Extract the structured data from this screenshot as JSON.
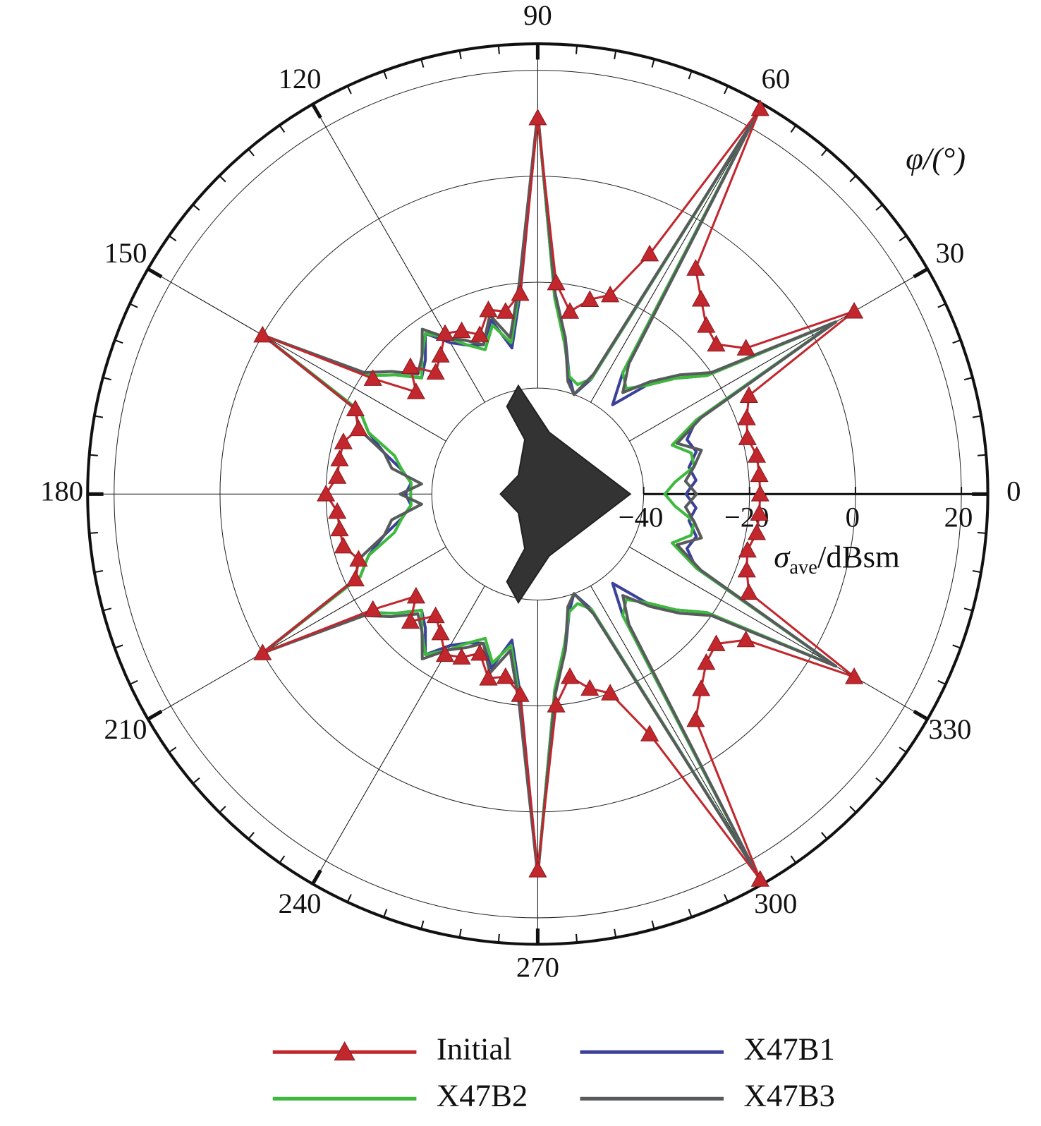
{
  "chart_data": {
    "type": "polar-line",
    "theta_label": "φ/(°)",
    "r_label": {
      "symbol": "σ",
      "subscript": "ave",
      "unit": "/dBsm"
    },
    "rlim": [
      -60,
      25
    ],
    "rticks": [
      {
        "value": -40,
        "label": "−40"
      },
      {
        "value": -20,
        "label": "−20"
      },
      0,
      20
    ],
    "thetaticks": [
      0,
      30,
      60,
      90,
      120,
      150,
      180,
      210,
      240,
      270,
      300,
      330
    ],
    "theta": [
      0,
      5,
      10,
      15,
      20,
      25,
      30,
      35,
      40,
      45,
      50,
      55,
      60,
      65,
      70,
      75,
      80,
      85,
      90,
      95,
      100,
      105,
      110,
      115,
      120,
      125,
      130,
      135,
      140,
      145,
      150,
      155,
      160,
      165,
      170,
      175,
      180,
      185,
      190,
      195,
      200,
      205,
      210,
      215,
      220,
      225,
      230,
      235,
      240,
      245,
      250,
      255,
      260,
      265,
      270,
      275,
      280,
      285,
      290,
      295,
      300,
      305,
      310,
      315,
      320,
      325,
      330,
      335,
      340,
      345,
      350,
      355
    ],
    "series": [
      {
        "name": "X47B1",
        "color": "#3b4199",
        "values": [
          -32,
          -30,
          -31,
          -29,
          -30,
          -27,
          5,
          -21,
          -26,
          -31,
          -38,
          -32,
          22,
          -36,
          -40,
          -37,
          -30,
          -23,
          12,
          -22,
          -32,
          -26,
          -30,
          -29,
          -27,
          -23,
          -27,
          -29,
          -25,
          -21,
          0,
          -23,
          -26,
          -30,
          -34,
          -36,
          -35,
          -36,
          -34,
          -30,
          -26,
          -23,
          0,
          -21,
          -25,
          -29,
          -27,
          -23,
          -27,
          -29,
          -30,
          -26,
          -32,
          -22,
          12,
          -23,
          -30,
          -37,
          -40,
          -36,
          22,
          -32,
          -38,
          -31,
          -26,
          -21,
          5,
          -27,
          -30,
          -29,
          -31,
          -30
        ]
      },
      {
        "name": "X47B2",
        "color": "#3dba3d",
        "values": [
          -36,
          -34,
          -30,
          -30,
          -33,
          -27,
          5,
          -21,
          -26,
          -31,
          -34,
          -32,
          22,
          -36,
          -38,
          -37,
          -31,
          -23,
          12,
          -21,
          -31,
          -27,
          -31,
          -29,
          -26,
          -23,
          -26,
          -29,
          -25,
          -21,
          0,
          -23,
          -26,
          -32,
          -34,
          -36,
          -36,
          -36,
          -34,
          -32,
          -26,
          -23,
          0,
          -21,
          -25,
          -29,
          -26,
          -23,
          -26,
          -29,
          -31,
          -27,
          -31,
          -21,
          12,
          -23,
          -31,
          -37,
          -38,
          -36,
          22,
          -32,
          -34,
          -31,
          -26,
          -21,
          5,
          -27,
          -33,
          -30,
          -30,
          -34
        ]
      },
      {
        "name": "X47B3",
        "color": "#575b5b",
        "values": [
          -30,
          -32,
          -30,
          -28,
          -32,
          -26,
          5,
          -20,
          -25,
          -30,
          -35,
          -30,
          22,
          -35,
          -40,
          -38,
          -30,
          -22,
          12,
          -20,
          -30,
          -25,
          -30,
          -28,
          -26,
          -22,
          -26,
          -28,
          -24,
          -20,
          0,
          -22,
          -24,
          -30,
          -32,
          -38,
          -34,
          -38,
          -32,
          -30,
          -24,
          -22,
          0,
          -20,
          -24,
          -28,
          -26,
          -22,
          -26,
          -28,
          -30,
          -25,
          -30,
          -20,
          12,
          -22,
          -30,
          -38,
          -40,
          -35,
          22,
          -30,
          -35,
          -30,
          -25,
          -20,
          5,
          -26,
          -32,
          -28,
          -30,
          -32
        ]
      },
      {
        "name": "Initial",
        "color": "#c1272d",
        "marker": "triangle",
        "values": [
          -18,
          -18,
          -18,
          -19,
          -18,
          -16,
          9,
          -12,
          -16,
          -15,
          -12,
          -8,
          24,
          -10,
          -20,
          -22,
          -25,
          -20,
          11,
          -22,
          -25,
          -24,
          -28,
          -26,
          -25,
          -28,
          -30,
          -26,
          -30,
          -22,
          0,
          -22,
          -24,
          -22,
          -22,
          -22,
          -20,
          -22,
          -22,
          -22,
          -24,
          -22,
          0,
          -22,
          -30,
          -26,
          -30,
          -28,
          -25,
          -26,
          -28,
          -24,
          -25,
          -22,
          11,
          -20,
          -25,
          -22,
          -20,
          -10,
          24,
          -8,
          -12,
          -15,
          -16,
          -12,
          9,
          -16,
          -18,
          -19,
          -18,
          -18
        ]
      }
    ],
    "legend_order": [
      3,
      0,
      1,
      2
    ]
  }
}
